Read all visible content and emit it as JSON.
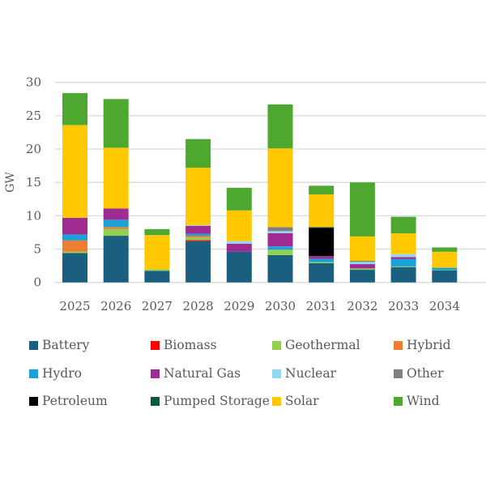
{
  "chart_data": {
    "type": "bar",
    "stacked": true,
    "title": "",
    "xlabel": "",
    "ylabel": "GW",
    "ylim": [
      0,
      30
    ],
    "yticks": [
      0,
      5,
      10,
      15,
      20,
      25,
      30
    ],
    "grid": true,
    "legend_position": "bottom",
    "categories": [
      "2025",
      "2026",
      "2027",
      "2028",
      "2029",
      "2030",
      "2031",
      "2032",
      "2033",
      "2034"
    ],
    "series": [
      {
        "name": "Battery",
        "color": "#1a5f80",
        "values": [
          4.4,
          7.0,
          1.75,
          6.2,
          4.6,
          4.1,
          2.9,
          1.9,
          2.3,
          1.8
        ]
      },
      {
        "name": "Biomass",
        "color": "#ff0000",
        "values": [
          0,
          0,
          0,
          0.15,
          0,
          0,
          0,
          0,
          0,
          0
        ]
      },
      {
        "name": "Geothermal",
        "color": "#92d050",
        "values": [
          0.2,
          1.0,
          0.25,
          0.4,
          0,
          0.8,
          0.15,
          0.2,
          0.1,
          0.05
        ]
      },
      {
        "name": "Hybrid",
        "color": "#ed7d31",
        "values": [
          1.7,
          0.3,
          0,
          0.25,
          0,
          0,
          0,
          0,
          0,
          0
        ]
      },
      {
        "name": "Hydro",
        "color": "#1ba1d9",
        "values": [
          0.9,
          1.1,
          0,
          0.3,
          0,
          0.5,
          0.5,
          0,
          1.1,
          0.35
        ]
      },
      {
        "name": "Natural Gas",
        "color": "#a02b93",
        "values": [
          2.5,
          1.7,
          0,
          1.2,
          1.2,
          2.0,
          0.4,
          0.65,
          0.3,
          0
        ]
      },
      {
        "name": "Nuclear",
        "color": "#92d8f5",
        "values": [
          0,
          0,
          0,
          0.1,
          0.4,
          0.3,
          0,
          0.35,
          0.45,
          0
        ]
      },
      {
        "name": "Other",
        "color": "#7f7f7f",
        "values": [
          0,
          0,
          0,
          0,
          0,
          0.6,
          0,
          0,
          0,
          0
        ]
      },
      {
        "name": "Petroleum",
        "color": "#000000",
        "values": [
          0,
          0,
          0,
          0,
          0,
          0,
          4.25,
          0,
          0,
          0
        ]
      },
      {
        "name": "Pumped Storage",
        "color": "#0b5a3e",
        "values": [
          0,
          0,
          0,
          0,
          0,
          0,
          0.1,
          0.1,
          0,
          0
        ]
      },
      {
        "name": "Solar",
        "color": "#ffc800",
        "values": [
          13.9,
          9.1,
          5.1,
          8.6,
          4.6,
          11.8,
          4.9,
          3.7,
          3.1,
          2.4
        ]
      },
      {
        "name": "Wind",
        "color": "#4ea72e",
        "values": [
          4.8,
          7.3,
          0.9,
          4.3,
          3.4,
          6.6,
          1.3,
          8.1,
          2.5,
          0.65
        ]
      }
    ]
  }
}
